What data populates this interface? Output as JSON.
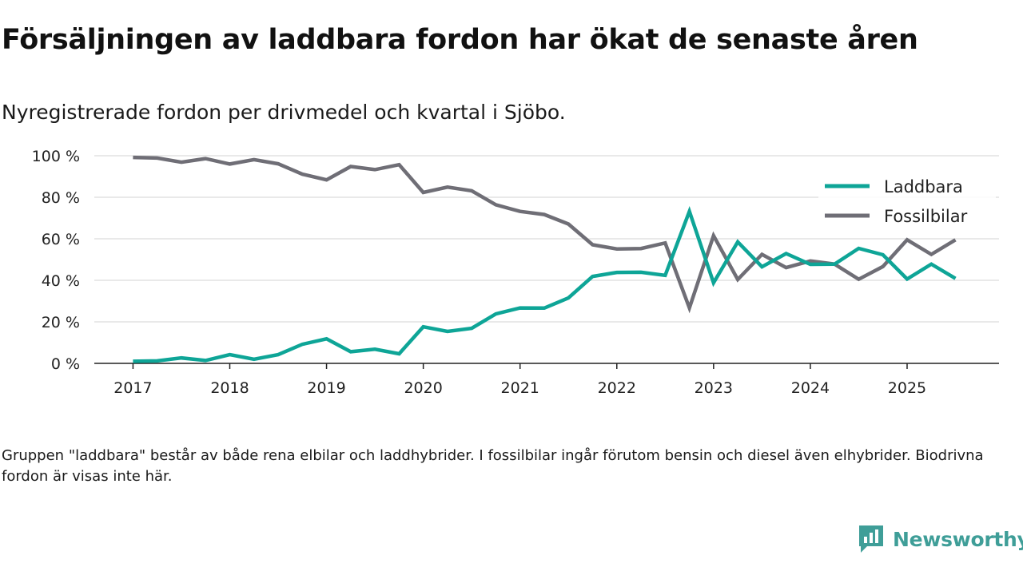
{
  "header": {
    "title": "Försäljningen av laddbara fordon har ökat de senaste åren",
    "subtitle": "Nyregistrerade fordon per drivmedel och kvartal i Sjöbo."
  },
  "chart_data": {
    "type": "line",
    "title": "Försäljningen av laddbara fordon har ökat de senaste åren",
    "subtitle": "Nyregistrerade fordon per drivmedel och kvartal i Sjöbo.",
    "xlabel": "",
    "ylabel": "",
    "x_unit": "year",
    "xlim": [
      2016.6,
      2025.95
    ],
    "ylim": [
      0,
      100
    ],
    "x_ticks": [
      2017,
      2018,
      2019,
      2020,
      2021,
      2022,
      2023,
      2024,
      2025
    ],
    "x_tick_labels": [
      "2017",
      "2018",
      "2019",
      "2020",
      "2021",
      "2022",
      "2023",
      "2024",
      "2025"
    ],
    "y_ticks": [
      0,
      20,
      40,
      60,
      80,
      100
    ],
    "y_tick_labels": [
      "0 %",
      "20 %",
      "40 %",
      "60 %",
      "80 %",
      "100 %"
    ],
    "grid": true,
    "legend_position": "top-right",
    "x": [
      2017,
      2017.25,
      2017.5,
      2017.75,
      2018,
      2018.25,
      2018.5,
      2018.75,
      2019,
      2019.25,
      2019.5,
      2019.75,
      2020,
      2020.25,
      2020.5,
      2020.75,
      2021,
      2021.25,
      2021.5,
      2021.75,
      2022,
      2022.25,
      2022.5,
      2022.75,
      2023,
      2023.25,
      2023.5,
      2023.75,
      2024,
      2024.25,
      2024.5,
      2024.75,
      2025,
      2025.25,
      2025.5
    ],
    "series": [
      {
        "name": "Laddbara",
        "color": "#0ea597",
        "values": [
          1,
          1.2,
          2.6,
          1.4,
          4.2,
          2,
          4.2,
          9.2,
          11.8,
          5.6,
          6.8,
          4.6,
          17.6,
          15.4,
          16.9,
          23.8,
          26.7,
          26.6,
          31.5,
          41.9,
          43.8,
          43.9,
          42.4,
          73.2,
          38.8,
          58.5,
          46.5,
          52.9,
          47.7,
          47.8,
          55.4,
          52.3,
          40.6,
          47.8,
          40.9
        ]
      },
      {
        "name": "Fossilbilar",
        "color": "#6f6e76",
        "values": [
          99.2,
          98.9,
          96.9,
          98.6,
          96,
          98.1,
          96.1,
          91.1,
          88.4,
          94.8,
          93.3,
          95.7,
          82.3,
          84.9,
          83.1,
          76.4,
          73.2,
          71.7,
          67.1,
          57.1,
          55.1,
          55.3,
          58,
          26.7,
          61.5,
          40.4,
          52.5,
          46.1,
          49.3,
          47.8,
          40.5,
          46.6,
          59.5,
          52.5,
          59.5
        ]
      }
    ]
  },
  "footnote": {
    "text": "Gruppen \"laddbara\" består av både rena elbilar och laddhybrider. I fossilbilar ingår förutom bensin och diesel även elhybrider. Biodrivna fordon är visas inte här."
  },
  "brand": {
    "name": "Newsworthy",
    "color": "#3f9e98",
    "icon": "newsworthy-logo-icon"
  }
}
